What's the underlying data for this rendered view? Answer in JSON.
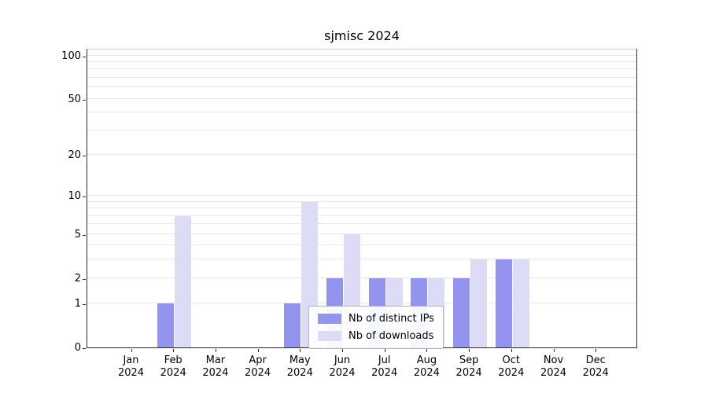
{
  "chart_data": {
    "type": "bar",
    "title": "sjmisc 2024",
    "categories": [
      "Jan",
      "Feb",
      "Mar",
      "Apr",
      "May",
      "Jun",
      "Jul",
      "Aug",
      "Sep",
      "Oct",
      "Nov",
      "Dec"
    ],
    "category_year": "2024",
    "series": [
      {
        "name": "Nb of distinct IPs",
        "color": "#9394ed",
        "values": [
          0,
          1,
          0,
          0,
          1,
          2,
          2,
          2,
          2,
          3,
          0,
          0
        ]
      },
      {
        "name": "Nb of downloads",
        "color": "#dcdcf7",
        "values": [
          0,
          7,
          0,
          0,
          9,
          5,
          2,
          2,
          3,
          3,
          0,
          0
        ]
      }
    ],
    "xlabel": "",
    "ylabel": "",
    "yaxis": {
      "scale": "log1p",
      "tick_values": [
        0,
        1,
        2,
        5,
        10,
        20,
        50,
        100
      ],
      "gridline_values": [
        1,
        2,
        3,
        4,
        5,
        6,
        7,
        8,
        9,
        10,
        20,
        30,
        40,
        50,
        60,
        70,
        80,
        90,
        100
      ],
      "ylim": [
        0,
        113
      ]
    },
    "grid": true,
    "legend_position": "inside-bottom-center",
    "colors": {
      "background": "#ffffff",
      "gridline": "#e8e8e8",
      "axis": "#2b2b2b"
    }
  }
}
